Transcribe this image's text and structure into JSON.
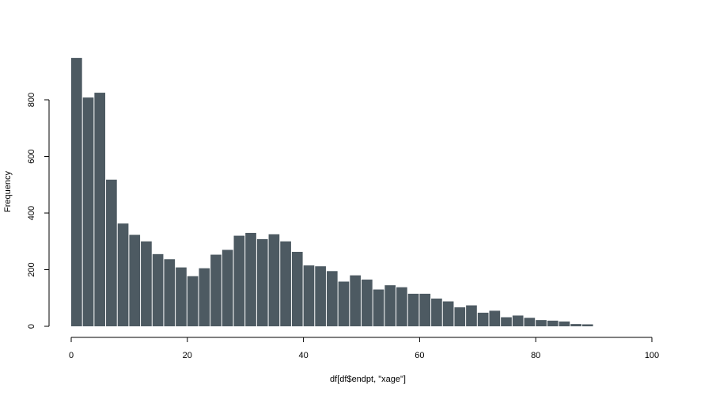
{
  "chart_data": {
    "type": "bar",
    "title": "",
    "xlabel": "df[df$endpt, \"xage\"]",
    "ylabel": "Frequency",
    "bin_width": 2,
    "bin_start": 0,
    "xlim": [
      0,
      100
    ],
    "ylim": [
      0,
      950
    ],
    "x_ticks": [
      0,
      20,
      40,
      60,
      80,
      100
    ],
    "y_ticks": [
      0,
      200,
      400,
      600,
      800
    ],
    "bar_color": "#4d5a62",
    "grid": false,
    "values": [
      948,
      808,
      825,
      518,
      363,
      323,
      300,
      255,
      237,
      208,
      177,
      205,
      253,
      270,
      320,
      330,
      308,
      325,
      300,
      263,
      215,
      212,
      195,
      158,
      180,
      165,
      130,
      145,
      138,
      115,
      115,
      98,
      88,
      67,
      74,
      48,
      55,
      32,
      38,
      30,
      22,
      20,
      17,
      8,
      7
    ]
  }
}
